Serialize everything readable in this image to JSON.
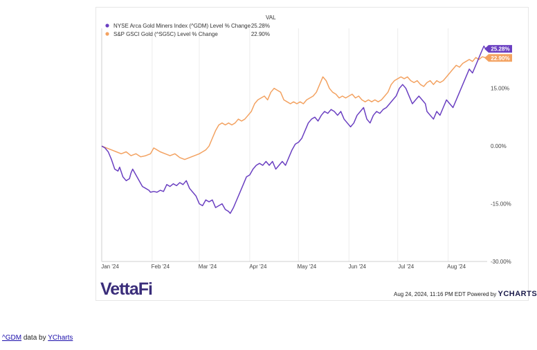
{
  "chart_data": {
    "type": "line",
    "legend": {
      "header": "VAL",
      "placement": "top-left"
    },
    "x_ticks": [
      "Jan '24",
      "Feb '24",
      "Mar '24",
      "Apr '24",
      "May '24",
      "Jun '24",
      "Jul '24",
      "Aug '24"
    ],
    "x_tick_days": [
      1,
      32,
      61,
      92,
      122,
      153,
      183,
      214
    ],
    "x_range_days": [
      1,
      238
    ],
    "y_ticks": [
      "15.00%",
      "0.00%",
      "-15.00%",
      "-30.00%"
    ],
    "y_tick_values": [
      15,
      0,
      -15,
      -30
    ],
    "ylim": [
      -30,
      27
    ],
    "grid": "vertical",
    "series": [
      {
        "name": "NYSE Arca Gold Miners Index (^GDM) Level % Change",
        "value_label": "25.28%",
        "end_label": "25.28%",
        "color": "#6a3fc1",
        "points": [
          [
            1,
            0
          ],
          [
            3,
            -0.5
          ],
          [
            5,
            -1.5
          ],
          [
            7,
            -3.5
          ],
          [
            9,
            -6
          ],
          [
            11,
            -6.5
          ],
          [
            12,
            -5.5
          ],
          [
            14,
            -8
          ],
          [
            16,
            -9
          ],
          [
            18,
            -8.5
          ],
          [
            19,
            -7
          ],
          [
            20,
            -6
          ],
          [
            22,
            -7.5
          ],
          [
            24,
            -9
          ],
          [
            26,
            -10.5
          ],
          [
            28,
            -11
          ],
          [
            30,
            -11.5
          ],
          [
            31,
            -12
          ],
          [
            33,
            -11.8
          ],
          [
            35,
            -12
          ],
          [
            37,
            -11.5
          ],
          [
            39,
            -11.8
          ],
          [
            41,
            -10
          ],
          [
            43,
            -10.5
          ],
          [
            45,
            -9.8
          ],
          [
            47,
            -10.3
          ],
          [
            49,
            -9.5
          ],
          [
            51,
            -10
          ],
          [
            53,
            -9
          ],
          [
            55,
            -11
          ],
          [
            57,
            -12
          ],
          [
            59,
            -13
          ],
          [
            61,
            -15
          ],
          [
            63,
            -15.5
          ],
          [
            65,
            -14
          ],
          [
            67,
            -14.5
          ],
          [
            69,
            -14
          ],
          [
            71,
            -16
          ],
          [
            73,
            -15.5
          ],
          [
            75,
            -15
          ],
          [
            77,
            -16.5
          ],
          [
            79,
            -17
          ],
          [
            80,
            -17.5
          ],
          [
            82,
            -16
          ],
          [
            84,
            -14
          ],
          [
            86,
            -12
          ],
          [
            88,
            -10
          ],
          [
            90,
            -8
          ],
          [
            92,
            -7.5
          ],
          [
            94,
            -6
          ],
          [
            96,
            -5
          ],
          [
            98,
            -4.5
          ],
          [
            100,
            -5
          ],
          [
            102,
            -4
          ],
          [
            104,
            -5
          ],
          [
            106,
            -4
          ],
          [
            108,
            -6
          ],
          [
            110,
            -5
          ],
          [
            112,
            -4
          ],
          [
            114,
            -5
          ],
          [
            116,
            -3
          ],
          [
            118,
            -1
          ],
          [
            120,
            0.5
          ],
          [
            122,
            1
          ],
          [
            124,
            2
          ],
          [
            126,
            4
          ],
          [
            128,
            6
          ],
          [
            130,
            7
          ],
          [
            132,
            7.5
          ],
          [
            134,
            6.5
          ],
          [
            136,
            8
          ],
          [
            138,
            9
          ],
          [
            140,
            8.5
          ],
          [
            142,
            9.5
          ],
          [
            144,
            9
          ],
          [
            146,
            8
          ],
          [
            148,
            9
          ],
          [
            150,
            7
          ],
          [
            152,
            6
          ],
          [
            154,
            5
          ],
          [
            156,
            6
          ],
          [
            158,
            8
          ],
          [
            160,
            9
          ],
          [
            162,
            10
          ],
          [
            164,
            7
          ],
          [
            166,
            6
          ],
          [
            168,
            8
          ],
          [
            170,
            9
          ],
          [
            172,
            8.5
          ],
          [
            174,
            9.5
          ],
          [
            176,
            10
          ],
          [
            178,
            11
          ],
          [
            180,
            12
          ],
          [
            182,
            13
          ],
          [
            184,
            15
          ],
          [
            186,
            16
          ],
          [
            188,
            15
          ],
          [
            190,
            13
          ],
          [
            192,
            11
          ],
          [
            194,
            12
          ],
          [
            196,
            13
          ],
          [
            198,
            12
          ],
          [
            200,
            11
          ],
          [
            201,
            9
          ],
          [
            203,
            8
          ],
          [
            205,
            7
          ],
          [
            207,
            9
          ],
          [
            209,
            8
          ],
          [
            211,
            10
          ],
          [
            213,
            12
          ],
          [
            215,
            11
          ],
          [
            217,
            10
          ],
          [
            219,
            12
          ],
          [
            221,
            14
          ],
          [
            223,
            16
          ],
          [
            225,
            18
          ],
          [
            227,
            20
          ],
          [
            229,
            19
          ],
          [
            231,
            21
          ],
          [
            233,
            23
          ],
          [
            235,
            25
          ],
          [
            236,
            26
          ],
          [
            237,
            25.3
          ],
          [
            238,
            25.28
          ]
        ]
      },
      {
        "name": "S&P GSCI Gold (^SG5C) Level % Change",
        "value_label": "22.90%",
        "end_label": "22.90%",
        "color": "#f3a261",
        "points": [
          [
            1,
            0
          ],
          [
            4,
            -0.5
          ],
          [
            7,
            -1
          ],
          [
            10,
            -1.5
          ],
          [
            13,
            -2
          ],
          [
            16,
            -1.5
          ],
          [
            19,
            -2.5
          ],
          [
            22,
            -2
          ],
          [
            25,
            -2.8
          ],
          [
            28,
            -2.5
          ],
          [
            31,
            -2
          ],
          [
            33,
            -0.5
          ],
          [
            35,
            -1
          ],
          [
            37,
            -1.5
          ],
          [
            40,
            -2
          ],
          [
            43,
            -2.5
          ],
          [
            46,
            -2
          ],
          [
            49,
            -3
          ],
          [
            52,
            -3.5
          ],
          [
            55,
            -3
          ],
          [
            58,
            -2.5
          ],
          [
            61,
            -2
          ],
          [
            63,
            -1.5
          ],
          [
            65,
            -1
          ],
          [
            67,
            0
          ],
          [
            69,
            2
          ],
          [
            71,
            4
          ],
          [
            73,
            5.5
          ],
          [
            75,
            6
          ],
          [
            77,
            5.5
          ],
          [
            79,
            6
          ],
          [
            81,
            5.5
          ],
          [
            83,
            6
          ],
          [
            85,
            7
          ],
          [
            87,
            6.5
          ],
          [
            89,
            7
          ],
          [
            91,
            8
          ],
          [
            93,
            9
          ],
          [
            95,
            11
          ],
          [
            97,
            12
          ],
          [
            99,
            12.5
          ],
          [
            101,
            13
          ],
          [
            103,
            12
          ],
          [
            105,
            14
          ],
          [
            107,
            15
          ],
          [
            109,
            14.5
          ],
          [
            111,
            14
          ],
          [
            113,
            12
          ],
          [
            115,
            11.5
          ],
          [
            117,
            11
          ],
          [
            119,
            11.5
          ],
          [
            121,
            11
          ],
          [
            123,
            11.5
          ],
          [
            125,
            11
          ],
          [
            127,
            12
          ],
          [
            129,
            12.5
          ],
          [
            131,
            13
          ],
          [
            133,
            14
          ],
          [
            135,
            16
          ],
          [
            137,
            18
          ],
          [
            139,
            17
          ],
          [
            141,
            15
          ],
          [
            143,
            14
          ],
          [
            145,
            13.5
          ],
          [
            147,
            12.5
          ],
          [
            149,
            13
          ],
          [
            151,
            12.5
          ],
          [
            153,
            13
          ],
          [
            155,
            13.5
          ],
          [
            157,
            12.5
          ],
          [
            159,
            13
          ],
          [
            161,
            12
          ],
          [
            163,
            11.5
          ],
          [
            165,
            12
          ],
          [
            167,
            11.5
          ],
          [
            169,
            12
          ],
          [
            171,
            11.5
          ],
          [
            173,
            12
          ],
          [
            175,
            13
          ],
          [
            177,
            14
          ],
          [
            179,
            16
          ],
          [
            181,
            17
          ],
          [
            183,
            17.5
          ],
          [
            185,
            18
          ],
          [
            187,
            17.5
          ],
          [
            189,
            18
          ],
          [
            191,
            17
          ],
          [
            193,
            16.5
          ],
          [
            195,
            17
          ],
          [
            197,
            16
          ],
          [
            199,
            15.5
          ],
          [
            201,
            16.5
          ],
          [
            203,
            17
          ],
          [
            205,
            16
          ],
          [
            207,
            17
          ],
          [
            209,
            16.5
          ],
          [
            211,
            17
          ],
          [
            213,
            18
          ],
          [
            215,
            19
          ],
          [
            217,
            20
          ],
          [
            219,
            21
          ],
          [
            221,
            20.5
          ],
          [
            223,
            21.5
          ],
          [
            225,
            22
          ],
          [
            227,
            22.5
          ],
          [
            229,
            22
          ],
          [
            231,
            23
          ],
          [
            233,
            22.5
          ],
          [
            235,
            23.2
          ],
          [
            237,
            23
          ],
          [
            238,
            22.9
          ]
        ]
      }
    ]
  },
  "branding": {
    "logo_text": "VettaFi",
    "timestamp": "Aug 24, 2024, 11:16 PM EDT Powered by",
    "powered_brand": "YCHARTS"
  },
  "credit": {
    "ticker_link": "^GDM",
    "middle_text": "data by",
    "source_link": "YCharts"
  }
}
